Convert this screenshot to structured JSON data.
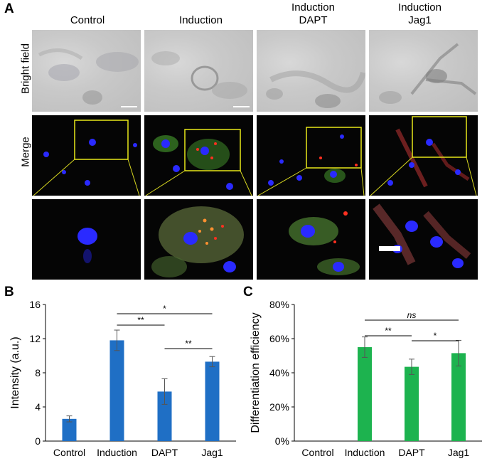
{
  "panel_a": {
    "letter": "A",
    "columns": [
      {
        "line1": "Control",
        "line2": ""
      },
      {
        "line1": "Induction",
        "line2": ""
      },
      {
        "line1": "Induction",
        "line2": "DAPT"
      },
      {
        "line1": "Induction",
        "line2": "Jag1"
      }
    ],
    "rows": [
      "Bright field",
      "Merge"
    ],
    "colors": {
      "box": "#e8e81a",
      "nucleus": "#2a2aff",
      "green": "#3f8a2a",
      "red": "#ff3020"
    }
  },
  "panel_b": {
    "letter": "B"
  },
  "panel_c": {
    "letter": "C"
  },
  "chart_data": [
    {
      "type": "bar",
      "categories": [
        "Control",
        "Induction",
        "DAPT",
        "Jag1"
      ],
      "values": [
        2.6,
        11.8,
        5.8,
        9.3
      ],
      "errors": [
        0.35,
        1.2,
        1.5,
        0.6
      ],
      "color": "#1f6fc5",
      "ylabel": "Intensity (a.u.)",
      "ylim": [
        0,
        16
      ],
      "yticks": [
        0,
        4,
        8,
        12,
        16
      ],
      "ytick_labels": [
        "0",
        "4",
        "8",
        "12",
        "16"
      ],
      "significance": [
        {
          "from": "Induction",
          "to": "DAPT",
          "label": "**"
        },
        {
          "from": "Induction",
          "to": "Jag1",
          "label": "*"
        },
        {
          "from": "DAPT",
          "to": "Jag1",
          "label": "**"
        }
      ]
    },
    {
      "type": "bar",
      "categories": [
        "Control",
        "Induction",
        "DAPT",
        "Jag1"
      ],
      "values": [
        0,
        55,
        43.5,
        51.5
      ],
      "errors": [
        0,
        6,
        4.5,
        7.5
      ],
      "color": "#1db34f",
      "ylabel": "Differentiation efficiency",
      "ylim": [
        0,
        80
      ],
      "yticks": [
        0,
        20,
        40,
        60,
        80
      ],
      "ytick_labels": [
        "0%",
        "20%",
        "40%",
        "60%",
        "80%"
      ],
      "significance": [
        {
          "from": "Induction",
          "to": "DAPT",
          "label": "**"
        },
        {
          "from": "Induction",
          "to": "Jag1",
          "label": "ns"
        },
        {
          "from": "DAPT",
          "to": "Jag1",
          "label": "*"
        }
      ]
    }
  ]
}
